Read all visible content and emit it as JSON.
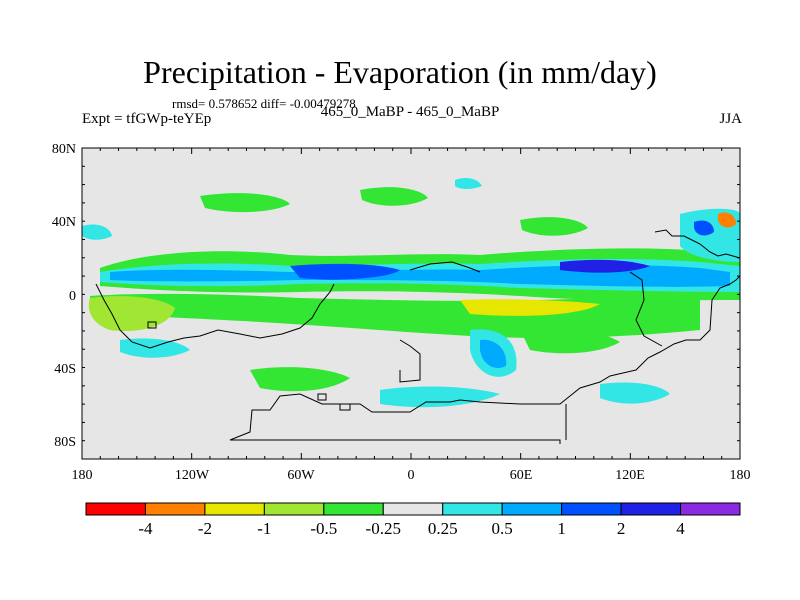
{
  "title": "Precipitation - Evaporation (in mm/day)",
  "stats_line": "rmsd= 0.578652 diff= -0.00479278",
  "left_label": "Expt = tfGWp-teYEp",
  "center_label": "465_0_MaBP - 465_0_MaBP",
  "right_label": "JJA",
  "axes": {
    "lat_ticks": [
      "80N",
      "40N",
      "0",
      "40S",
      "80S"
    ],
    "lon_ticks": [
      "180",
      "120W",
      "60W",
      "0",
      "60E",
      "120E",
      "180"
    ]
  },
  "colorbar": {
    "colors": [
      "#ff0000",
      "#ff8000",
      "#e6e600",
      "#a0e632",
      "#33e633",
      "#e6e6e6",
      "#33e6e6",
      "#00aaff",
      "#0050ff",
      "#2020e6",
      "#8a2be2"
    ],
    "labels": [
      "-4",
      "-2",
      "-1",
      "-0.5",
      "-0.25",
      "0.25",
      "0.5",
      "1",
      "2",
      "4"
    ]
  },
  "map_colors": {
    "background": "#e6e6e6",
    "dry_strong": "#ff0000",
    "dry_orange": "#ff8000",
    "dry_yellow": "#e6e600",
    "dry_lightgreen": "#a0e632",
    "dry_green": "#33e633",
    "wet_cyan": "#33e6e6",
    "wet_lightblue": "#00aaff",
    "wet_blue": "#0050ff",
    "wet_darkblue": "#2020e6",
    "coast": "#000000"
  }
}
